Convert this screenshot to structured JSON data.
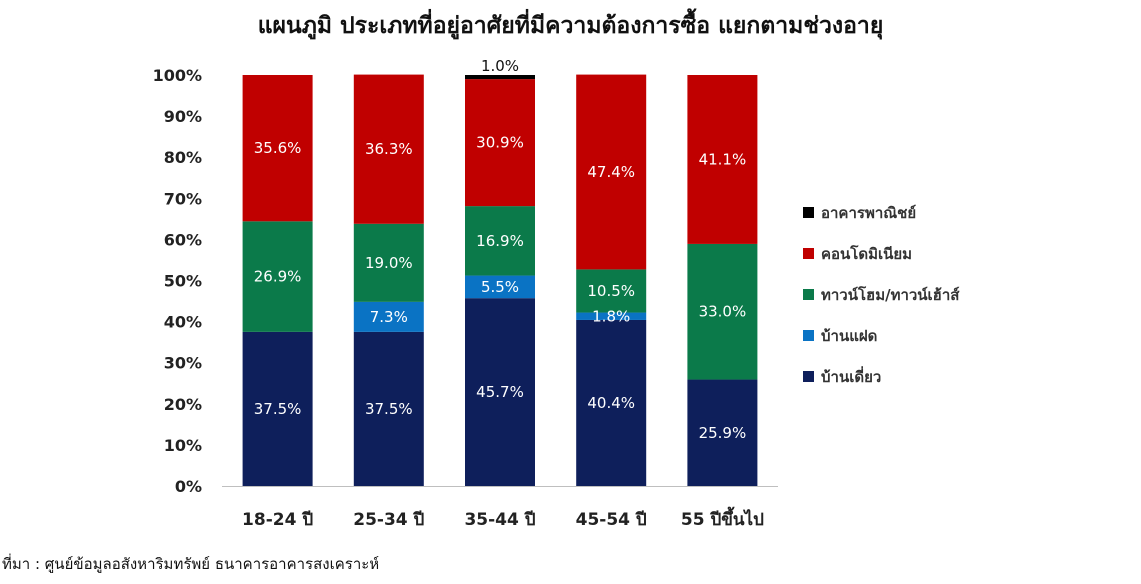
{
  "title": "แผนภูมิ ประเภทที่อยู่อาศัยที่มีความต้องการซื้อ แยกตามช่วงอายุ",
  "source_note": "ที่มา : ศูนย์ข้อมูลอสังหาริมทรัพย์ ธนาคารอาคารสงเคราะห์",
  "chart_data": {
    "type": "bar",
    "stacked": true,
    "categories": [
      "18-24 ปี",
      "25-34 ปี",
      "35-44 ปี",
      "45-54 ปี",
      "55 ปีขึ้นไป"
    ],
    "ylim": [
      0,
      100
    ],
    "yticks": [
      "0%",
      "10%",
      "20%",
      "30%",
      "40%",
      "50%",
      "60%",
      "70%",
      "80%",
      "90%",
      "100%"
    ],
    "legend_position": "right",
    "grid": false,
    "series": [
      {
        "name": "บ้านเดี่ยว",
        "color": "#0e1f5b",
        "values": [
          37.5,
          37.5,
          45.7,
          40.4,
          25.9
        ],
        "labels": [
          "37.5%",
          "37.5%",
          "45.7%",
          "40.4%",
          "25.9%"
        ]
      },
      {
        "name": "บ้านแฝด",
        "color": "#0a73c4",
        "values": [
          0,
          7.3,
          5.5,
          1.8,
          0
        ],
        "labels": [
          "",
          "7.3%",
          "5.5%",
          "1.8%",
          ""
        ]
      },
      {
        "name": "ทาวน์โฮม/ทาวน์เฮ้าส์",
        "color": "#0b7a4a",
        "values": [
          26.9,
          19.0,
          16.9,
          10.5,
          33.0
        ],
        "labels": [
          "26.9%",
          "19.0%",
          "16.9%",
          "10.5%",
          "33.0%"
        ]
      },
      {
        "name": "คอนโดมิเนียม",
        "color": "#c00000",
        "values": [
          35.6,
          36.3,
          30.9,
          47.4,
          41.1
        ],
        "labels": [
          "35.6%",
          "36.3%",
          "30.9%",
          "47.4%",
          "41.1%"
        ]
      },
      {
        "name": "อาคารพาณิชย์",
        "color": "#000000",
        "values": [
          0,
          0,
          1.0,
          0,
          0
        ],
        "labels": [
          "",
          "",
          "1.0%",
          "",
          ""
        ]
      }
    ],
    "legend_order": [
      "อาคารพาณิชย์",
      "คอนโดมิเนียม",
      "ทาวน์โฮม/ทาวน์เฮ้าส์",
      "บ้านแฝด",
      "บ้านเดี่ยว"
    ]
  }
}
